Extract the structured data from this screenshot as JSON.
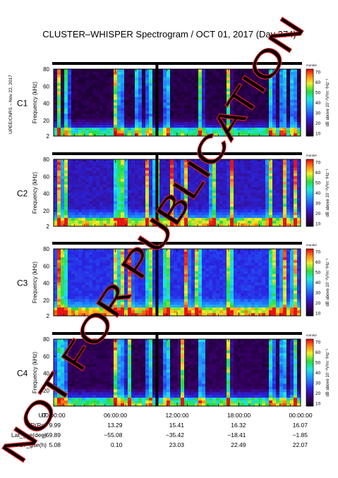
{
  "title": "CLUSTER–WHISPER Spectrogram / OCT 01, 2017 (Day 274)",
  "side_note": "UPEE/CNRS – Nov 22, 2017",
  "watermark": "NOT FOR PUBLICATION",
  "colors": {
    "watermark": "#e02020",
    "c3_label": "#22aa22",
    "panel_label": "#000000"
  },
  "chart_data": [
    {
      "type": "heatmap",
      "panel": "C1",
      "label_color": "#000000",
      "ylabel": "Frequency (kHz)",
      "y_ticks": [
        "2",
        "20",
        "40",
        "60",
        "80"
      ],
      "ylim": [
        2,
        80
      ],
      "colorbar": {
        "label": "dB above 10⁻⁸V²m⁻²Hz⁻¹",
        "ticks": [
          "10",
          "20",
          "30",
          "40",
          "50",
          "60",
          "70"
        ],
        "range": [
          10,
          70
        ],
        "header": "monitor"
      },
      "features": {
        "background_level": "mostly low (black / deep purple)",
        "bursts_hours": [
          0.5,
          1.3,
          6.0,
          6.5,
          8.2,
          9.3,
          11.0,
          14.3,
          17.0,
          21.2,
          22.3,
          23.3
        ],
        "data_gap_hour": 9.9
      }
    },
    {
      "type": "heatmap",
      "panel": "C2",
      "label_color": "#000000",
      "ylabel": "Frequency (kHz)",
      "y_ticks": [
        "2",
        "20",
        "40",
        "60",
        "80"
      ],
      "ylim": [
        2,
        80
      ],
      "colorbar": {
        "label": "dB above 10⁻⁸V²m⁻²Hz⁻¹",
        "ticks": [
          "10",
          "20",
          "30",
          "40",
          "50",
          "60",
          "70"
        ],
        "range": [
          10,
          70
        ],
        "header": "monitor"
      },
      "features": {
        "background_level": "purple, broadband activity",
        "bursts_hours": [
          0.5,
          1.1,
          6.2,
          6.8,
          9.1,
          10.0,
          11.5,
          12.8,
          15.5,
          17.3,
          21.0,
          22.5,
          23.5
        ],
        "data_gap_hour": 9.9
      }
    },
    {
      "type": "heatmap",
      "panel": "C3",
      "label_color": "#22aa22",
      "ylabel": "Frequency (kHz)",
      "y_ticks": [
        "2",
        "20",
        "40",
        "60",
        "80"
      ],
      "ylim": [
        2,
        80
      ],
      "colorbar": {
        "label": "dB above 10⁻⁸V²m⁻²Hz⁻¹",
        "ticks": [
          "10",
          "20",
          "30",
          "40",
          "50",
          "60",
          "70"
        ],
        "range": [
          10,
          70
        ],
        "header": "monitor"
      },
      "features": {
        "background_level": "blue / purple",
        "bursts_hours": [
          0.5,
          1.0,
          6.1,
          6.6,
          7.4,
          9.3,
          11.0,
          12.9,
          14.0,
          17.1,
          21.3,
          22.4,
          23.4
        ],
        "data_gap_hour": 9.9
      }
    },
    {
      "type": "heatmap",
      "panel": "C4",
      "label_color": "#000000",
      "ylabel": "Frequency (kHz)",
      "y_ticks": [
        "2",
        "20",
        "40",
        "60",
        "80"
      ],
      "ylim": [
        2,
        80
      ],
      "colorbar": {
        "label": "dB above 10⁻⁸V²m⁻²Hz⁻¹",
        "ticks": [
          "10",
          "20",
          "30",
          "40",
          "50",
          "60",
          "70"
        ],
        "range": [
          10,
          70
        ],
        "header": "monitor"
      },
      "features": {
        "background_level": "mostly low (black / deep purple)",
        "bursts_hours": [
          0.4,
          1.0,
          6.0,
          6.5,
          7.3,
          9.3,
          11.0,
          12.5,
          14.4,
          17.0,
          21.2,
          22.3,
          23.4
        ],
        "data_gap_hour": 9.9
      }
    }
  ],
  "x_axis": {
    "rows": [
      {
        "label": "UT",
        "values": [
          "00:00:00",
          "06:00:00",
          "12:00:00",
          "18:00:00",
          "00:00:00"
        ]
      },
      {
        "label": "R(Re)",
        "values": [
          "9.99",
          "13.29",
          "15.41",
          "16.32",
          "16.07"
        ]
      },
      {
        "label": "Lat_gse(deg)",
        "values": [
          "−69.89",
          "−55.08",
          "−35.42",
          "−18.41",
          "−1.85"
        ]
      },
      {
        "label": "LT_gse(h)",
        "values": [
          "5.08",
          "0.10",
          "23.03",
          "22.49",
          "22.07"
        ]
      }
    ]
  }
}
